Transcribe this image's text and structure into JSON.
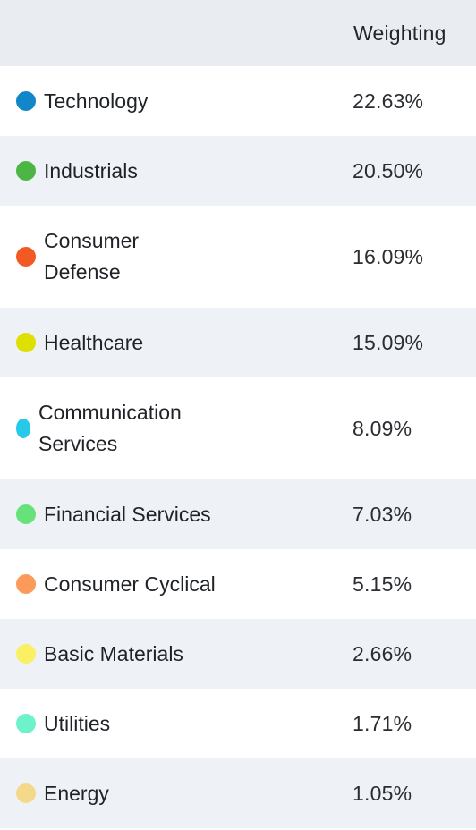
{
  "header": {
    "name_label": "",
    "weight_label": "Weighting"
  },
  "rows": [
    {
      "name": "Technology",
      "weight": "22.63%",
      "color": "#1187c9"
    },
    {
      "name": "Industrials",
      "weight": "20.50%",
      "color": "#4cb543"
    },
    {
      "name": "Consumer Defense",
      "weight": "16.09%",
      "color": "#f15a22"
    },
    {
      "name": "Healthcare",
      "weight": "15.09%",
      "color": "#dde000"
    },
    {
      "name": "Communication Services",
      "weight": "8.09%",
      "color": "#27c9e8"
    },
    {
      "name": "Financial Services",
      "weight": "7.03%",
      "color": "#67e27b"
    },
    {
      "name": "Consumer Cyclical",
      "weight": "5.15%",
      "color": "#fb9a5a"
    },
    {
      "name": "Basic Materials",
      "weight": "2.66%",
      "color": "#fbef63"
    },
    {
      "name": "Utilities",
      "weight": "1.71%",
      "color": "#6ef2cb"
    },
    {
      "name": "Energy",
      "weight": "1.05%",
      "color": "#f5d98b"
    }
  ]
}
